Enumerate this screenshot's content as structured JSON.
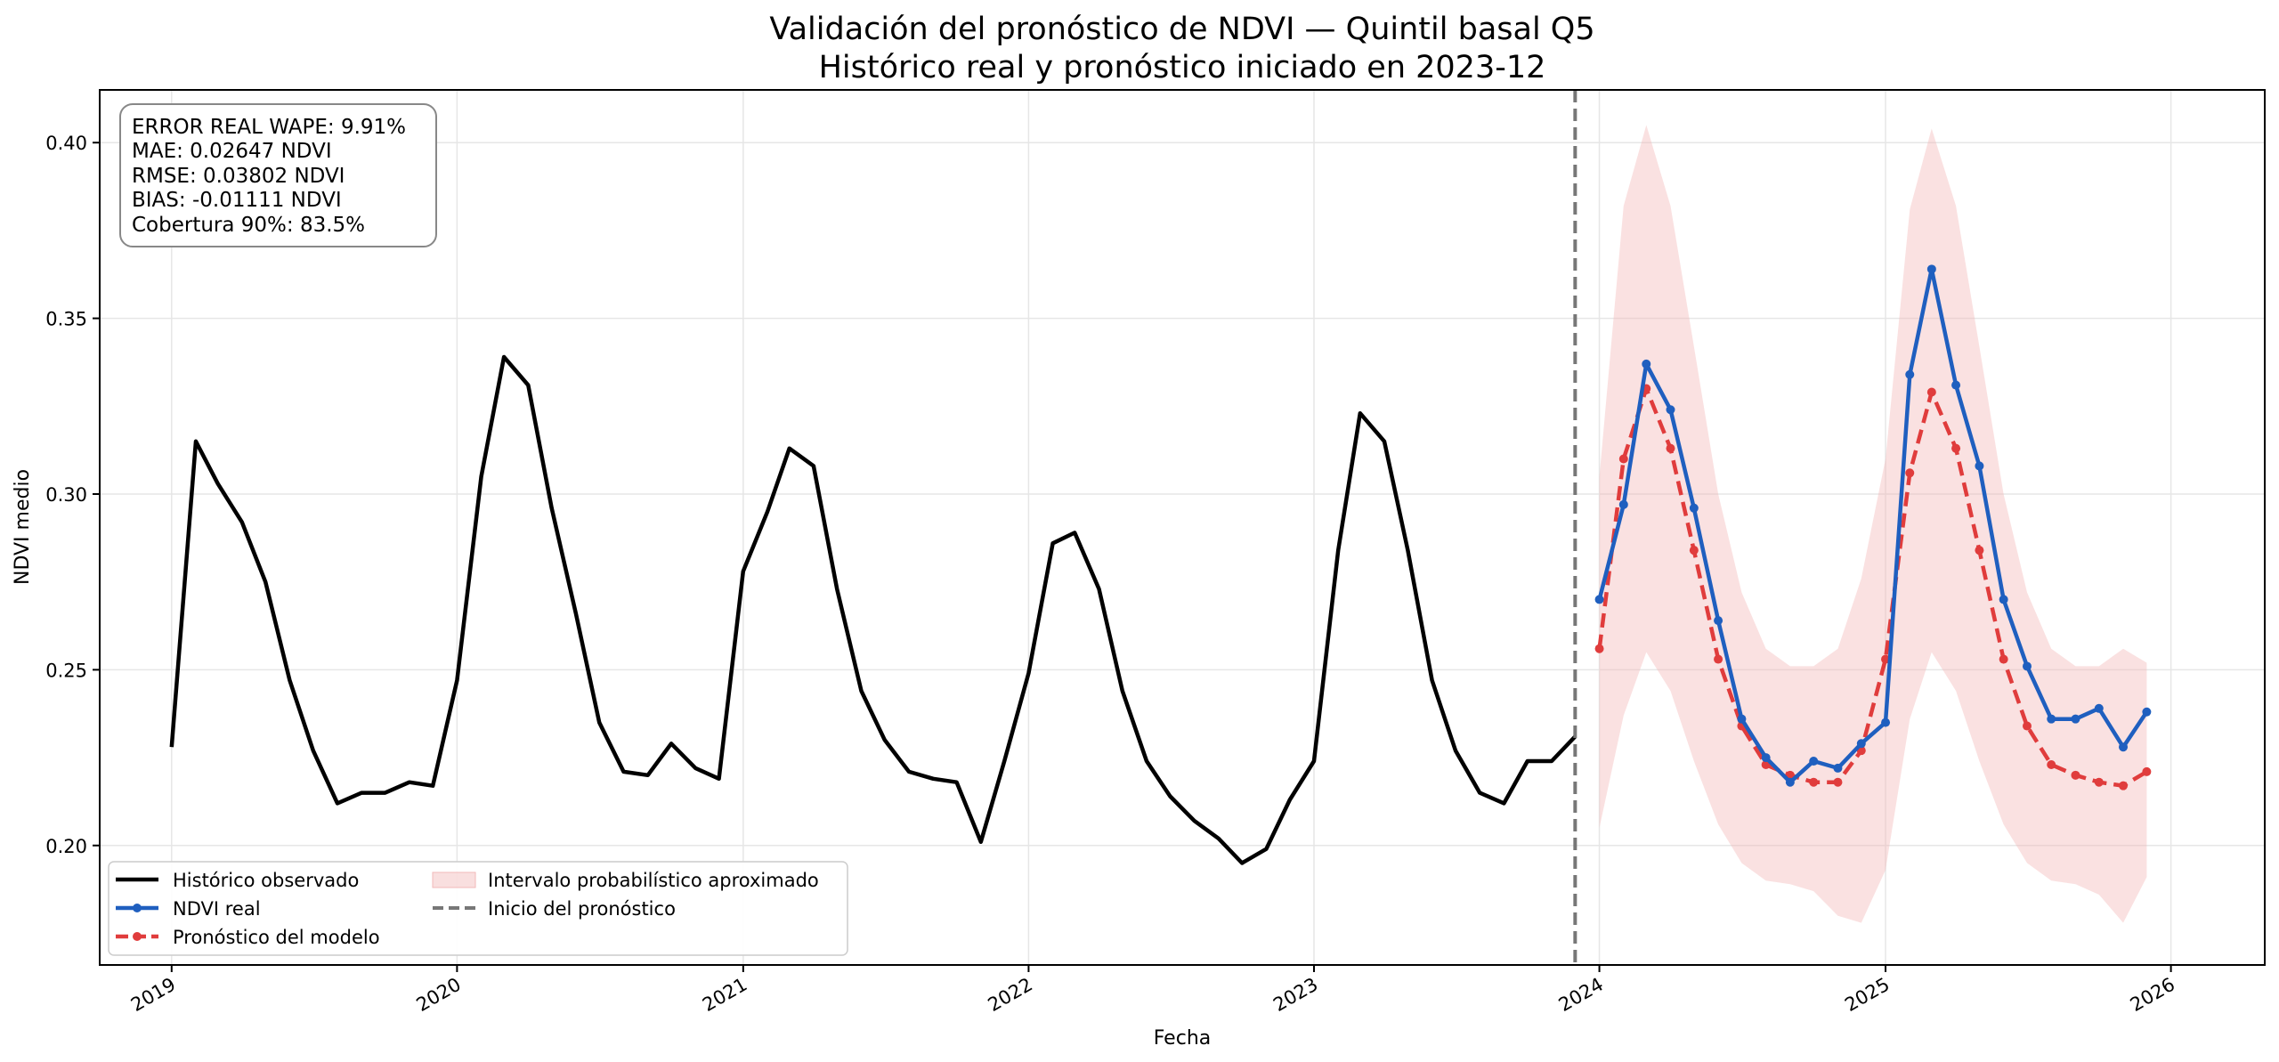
{
  "chart_data": {
    "type": "line",
    "title": "Validación del pronóstico de NDVI — Quintil basal Q5",
    "subtitle": "Histórico real y pronóstico iniciado en 2023-12",
    "xlabel": "Fecha",
    "ylabel": "NDVI medio",
    "xlim": [
      "2018-10-01",
      "2026-05-01"
    ],
    "ylim": [
      0.166,
      0.415
    ],
    "x_ticks": [
      "2019",
      "2020",
      "2021",
      "2022",
      "2023",
      "2024",
      "2025",
      "2026"
    ],
    "y_ticks": [
      "0.20",
      "0.25",
      "0.30",
      "0.35",
      "0.40"
    ],
    "grid": true,
    "legend_position": "lower-left",
    "forecast_start": "2023-12-01",
    "metrics": [
      "ERROR REAL WAPE: 9.91%",
      "MAE: 0.02647 NDVI",
      "RMSE: 0.03802 NDVI",
      "BIAS: -0.01111 NDVI",
      "Cobertura 90%: 83.5%"
    ],
    "colors": {
      "historical": "#000000",
      "actual": "#1f5fbf",
      "forecast": "#e03c3c",
      "interval": "#f2b8b8",
      "forecast_start_line": "#777777"
    },
    "legend": [
      {
        "label": "Histórico observado",
        "key": "historical"
      },
      {
        "label": "NDVI real",
        "key": "actual"
      },
      {
        "label": "Pronóstico del modelo",
        "key": "forecast"
      },
      {
        "label": "Intervalo probabilístico aproximado",
        "key": "interval"
      },
      {
        "label": "Inicio del pronóstico",
        "key": "forecast_start_line"
      }
    ],
    "series": [
      {
        "name": "Histórico observado",
        "x": [
          "2019-01",
          "2019-02",
          "2019-03",
          "2019-04",
          "2019-05",
          "2019-06",
          "2019-07",
          "2019-08",
          "2019-09",
          "2019-10",
          "2019-11",
          "2019-12",
          "2020-01",
          "2020-02",
          "2020-03",
          "2020-04",
          "2020-05",
          "2020-06",
          "2020-07",
          "2020-08",
          "2020-09",
          "2020-10",
          "2020-11",
          "2020-12",
          "2021-01",
          "2021-02",
          "2021-03",
          "2021-04",
          "2021-05",
          "2021-06",
          "2021-07",
          "2021-08",
          "2021-09",
          "2021-10",
          "2021-11",
          "2021-12",
          "2022-01",
          "2022-02",
          "2022-03",
          "2022-04",
          "2022-05",
          "2022-06",
          "2022-07",
          "2022-08",
          "2022-09",
          "2022-10",
          "2022-11",
          "2022-12",
          "2023-01",
          "2023-02",
          "2023-03",
          "2023-04",
          "2023-05",
          "2023-06",
          "2023-07",
          "2023-08",
          "2023-09",
          "2023-10",
          "2023-11",
          "2023-12"
        ],
        "y": [
          0.228,
          0.315,
          0.303,
          0.292,
          0.275,
          0.247,
          0.227,
          0.212,
          0.215,
          0.215,
          0.218,
          0.217,
          0.247,
          0.305,
          0.339,
          0.331,
          0.296,
          0.266,
          0.235,
          0.221,
          0.22,
          0.229,
          0.222,
          0.219,
          0.278,
          0.295,
          0.313,
          0.308,
          0.273,
          0.244,
          0.23,
          0.221,
          0.219,
          0.218,
          0.201,
          0.224,
          0.249,
          0.286,
          0.289,
          0.273,
          0.244,
          0.224,
          0.214,
          0.207,
          0.202,
          0.195,
          0.199,
          0.213,
          0.224,
          0.284,
          0.323,
          0.315,
          0.284,
          0.247,
          0.227,
          0.215,
          0.212,
          0.224,
          0.224,
          0.231
        ]
      },
      {
        "name": "NDVI real",
        "x": [
          "2024-01",
          "2024-02",
          "2024-03",
          "2024-04",
          "2024-05",
          "2024-06",
          "2024-07",
          "2024-08",
          "2024-09",
          "2024-10",
          "2024-11",
          "2024-12",
          "2025-01",
          "2025-02",
          "2025-03",
          "2025-04",
          "2025-05",
          "2025-06",
          "2025-07",
          "2025-08",
          "2025-09",
          "2025-10",
          "2025-11",
          "2025-12"
        ],
        "y": [
          0.27,
          0.297,
          0.337,
          0.324,
          0.296,
          0.264,
          0.236,
          0.225,
          0.218,
          0.224,
          0.222,
          0.229,
          0.235,
          0.334,
          0.364,
          0.331,
          0.308,
          0.27,
          0.251,
          0.236,
          0.236,
          0.239,
          0.228,
          0.238
        ]
      },
      {
        "name": "Pronóstico del modelo",
        "x": [
          "2024-01",
          "2024-02",
          "2024-03",
          "2024-04",
          "2024-05",
          "2024-06",
          "2024-07",
          "2024-08",
          "2024-09",
          "2024-10",
          "2024-11",
          "2024-12",
          "2025-01",
          "2025-02",
          "2025-03",
          "2025-04",
          "2025-05",
          "2025-06",
          "2025-07",
          "2025-08",
          "2025-09",
          "2025-10",
          "2025-11",
          "2025-12"
        ],
        "y": [
          0.256,
          0.31,
          0.33,
          0.313,
          0.284,
          0.253,
          0.234,
          0.223,
          0.22,
          0.218,
          0.218,
          0.227,
          0.253,
          0.306,
          0.329,
          0.313,
          0.284,
          0.253,
          0.234,
          0.223,
          0.22,
          0.218,
          0.217,
          0.221
        ]
      }
    ],
    "interval": {
      "name": "Intervalo probabilístico aproximado",
      "x": [
        "2024-01",
        "2024-02",
        "2024-03",
        "2024-04",
        "2024-05",
        "2024-06",
        "2024-07",
        "2024-08",
        "2024-09",
        "2024-10",
        "2024-11",
        "2024-12",
        "2025-01",
        "2025-02",
        "2025-03",
        "2025-04",
        "2025-05",
        "2025-06",
        "2025-07",
        "2025-08",
        "2025-09",
        "2025-10",
        "2025-11",
        "2025-12"
      ],
      "lower": [
        0.205,
        0.237,
        0.255,
        0.244,
        0.224,
        0.206,
        0.195,
        0.19,
        0.189,
        0.187,
        0.18,
        0.178,
        0.193,
        0.236,
        0.255,
        0.244,
        0.224,
        0.206,
        0.195,
        0.19,
        0.189,
        0.186,
        0.178,
        0.191
      ],
      "upper": [
        0.305,
        0.382,
        0.405,
        0.382,
        0.342,
        0.3,
        0.272,
        0.256,
        0.251,
        0.251,
        0.256,
        0.276,
        0.31,
        0.381,
        0.404,
        0.382,
        0.342,
        0.3,
        0.272,
        0.256,
        0.251,
        0.251,
        0.256,
        0.252
      ]
    }
  }
}
